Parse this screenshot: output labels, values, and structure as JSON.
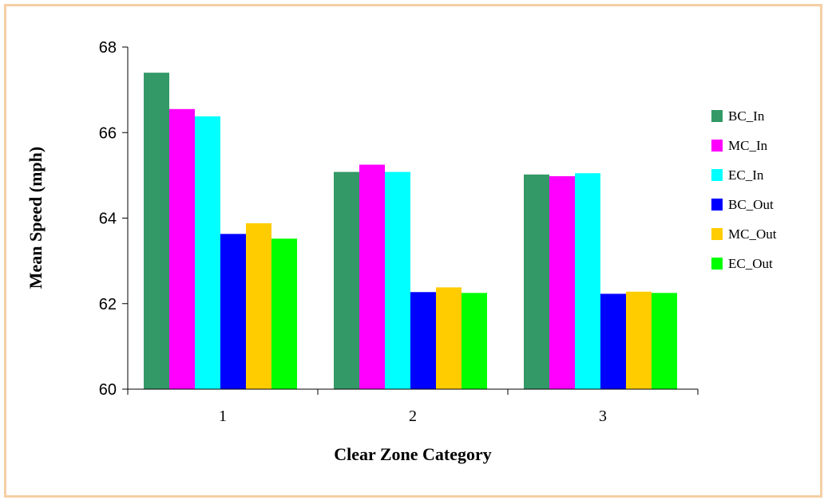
{
  "chart_data": {
    "type": "bar",
    "title": "",
    "xlabel": "Clear Zone Category",
    "ylabel": "Mean Speed (mph)",
    "categories": [
      "1",
      "2",
      "3"
    ],
    "ylim": [
      60,
      68
    ],
    "yticks": [
      "60",
      "62",
      "64",
      "66",
      "68"
    ],
    "grid": false,
    "legend_position": "right",
    "series": [
      {
        "name": "BC_In",
        "color": "#339966",
        "values": [
          67.4,
          65.08,
          65.02
        ]
      },
      {
        "name": "MC_In",
        "color": "#ff00ff",
        "values": [
          66.55,
          65.25,
          64.98
        ]
      },
      {
        "name": "EC_In",
        "color": "#00ffff",
        "values": [
          66.38,
          65.08,
          65.05
        ]
      },
      {
        "name": "BC_Out",
        "color": "#0000ff",
        "values": [
          63.63,
          62.27,
          62.23
        ]
      },
      {
        "name": "MC_Out",
        "color": "#ffcc00",
        "values": [
          63.88,
          62.38,
          62.28
        ]
      },
      {
        "name": "EC_Out",
        "color": "#00ff00",
        "values": [
          63.52,
          62.25,
          62.25
        ]
      }
    ]
  }
}
